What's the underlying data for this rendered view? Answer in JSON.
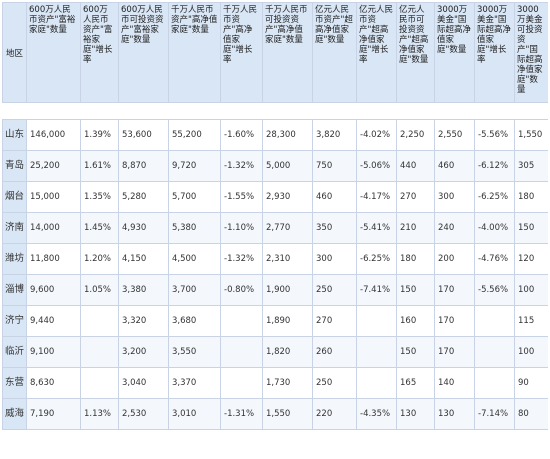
{
  "columns": [
    "地区",
    "600万人民币资产\"富裕家庭\"数量",
    "600万人民币资产\"富裕家庭\"增长率",
    "600万人民币可投资资产\"富裕家庭\"数量",
    "千万人民币资产\"高净值家庭\"数量",
    "千万人民币资产\"高净值家庭\"增长率",
    "千万人民币可投资资产\"高净值家庭\"数量",
    "亿元人民币资产\"超高净值家庭\"数量",
    "亿元人民币资产\"超高净值家庭\"增长率",
    "亿元人民币可投资资产\"超高净值家庭\"数量",
    "3000万美金\"国际超高净值家庭\"数量",
    "3000万美金\"国际超高净值家庭\"增长率",
    "3000万美金可投资资产\"国际超高净值家庭\"数量"
  ],
  "rows": [
    {
      "region": "山东",
      "cells": [
        "146,000",
        "1.39%",
        "53,600",
        "55,200",
        "-1.60%",
        "28,300",
        "3,820",
        "-4.02%",
        "2,250",
        "2,550",
        "-5.56%",
        "1,550"
      ]
    },
    {
      "region": "青岛",
      "cells": [
        "25,200",
        "1.61%",
        "8,870",
        "9,720",
        "-1.32%",
        "5,000",
        "750",
        "-5.06%",
        "440",
        "460",
        "-6.12%",
        "305"
      ]
    },
    {
      "region": "烟台",
      "cells": [
        "15,000",
        "1.35%",
        "5,280",
        "5,700",
        "-1.55%",
        "2,930",
        "460",
        "-4.17%",
        "270",
        "300",
        "-6.25%",
        "180"
      ]
    },
    {
      "region": "济南",
      "cells": [
        "14,000",
        "1.45%",
        "4,930",
        "5,380",
        "-1.10%",
        "2,770",
        "350",
        "-5.41%",
        "210",
        "240",
        "-4.00%",
        "150"
      ]
    },
    {
      "region": "潍坊",
      "cells": [
        "11,800",
        "1.20%",
        "4,150",
        "4,500",
        "-1.32%",
        "2,310",
        "300",
        "-6.25%",
        "180",
        "200",
        "-4.76%",
        "120"
      ]
    },
    {
      "region": "淄博",
      "cells": [
        "9,600",
        "1.05%",
        "3,380",
        "3,700",
        "-0.80%",
        "1,900",
        "250",
        "-7.41%",
        "150",
        "170",
        "-5.56%",
        "100"
      ]
    },
    {
      "region": "济宁",
      "cells": [
        "9,440",
        "",
        "3,320",
        "3,680",
        "",
        "1,890",
        "270",
        "",
        "160",
        "170",
        "",
        "115"
      ]
    },
    {
      "region": "临沂",
      "cells": [
        "9,100",
        "",
        "3,200",
        "3,550",
        "",
        "1,820",
        "260",
        "",
        "150",
        "170",
        "",
        "100"
      ]
    },
    {
      "region": "东营",
      "cells": [
        "8,630",
        "",
        "3,040",
        "3,370",
        "",
        "1,730",
        "250",
        "",
        "165",
        "140",
        "",
        "90"
      ]
    },
    {
      "region": "威海",
      "cells": [
        "7,190",
        "1.13%",
        "2,530",
        "3,010",
        "-1.31%",
        "1,550",
        "220",
        "-4.35%",
        "130",
        "130",
        "-7.14%",
        "80"
      ]
    }
  ]
}
